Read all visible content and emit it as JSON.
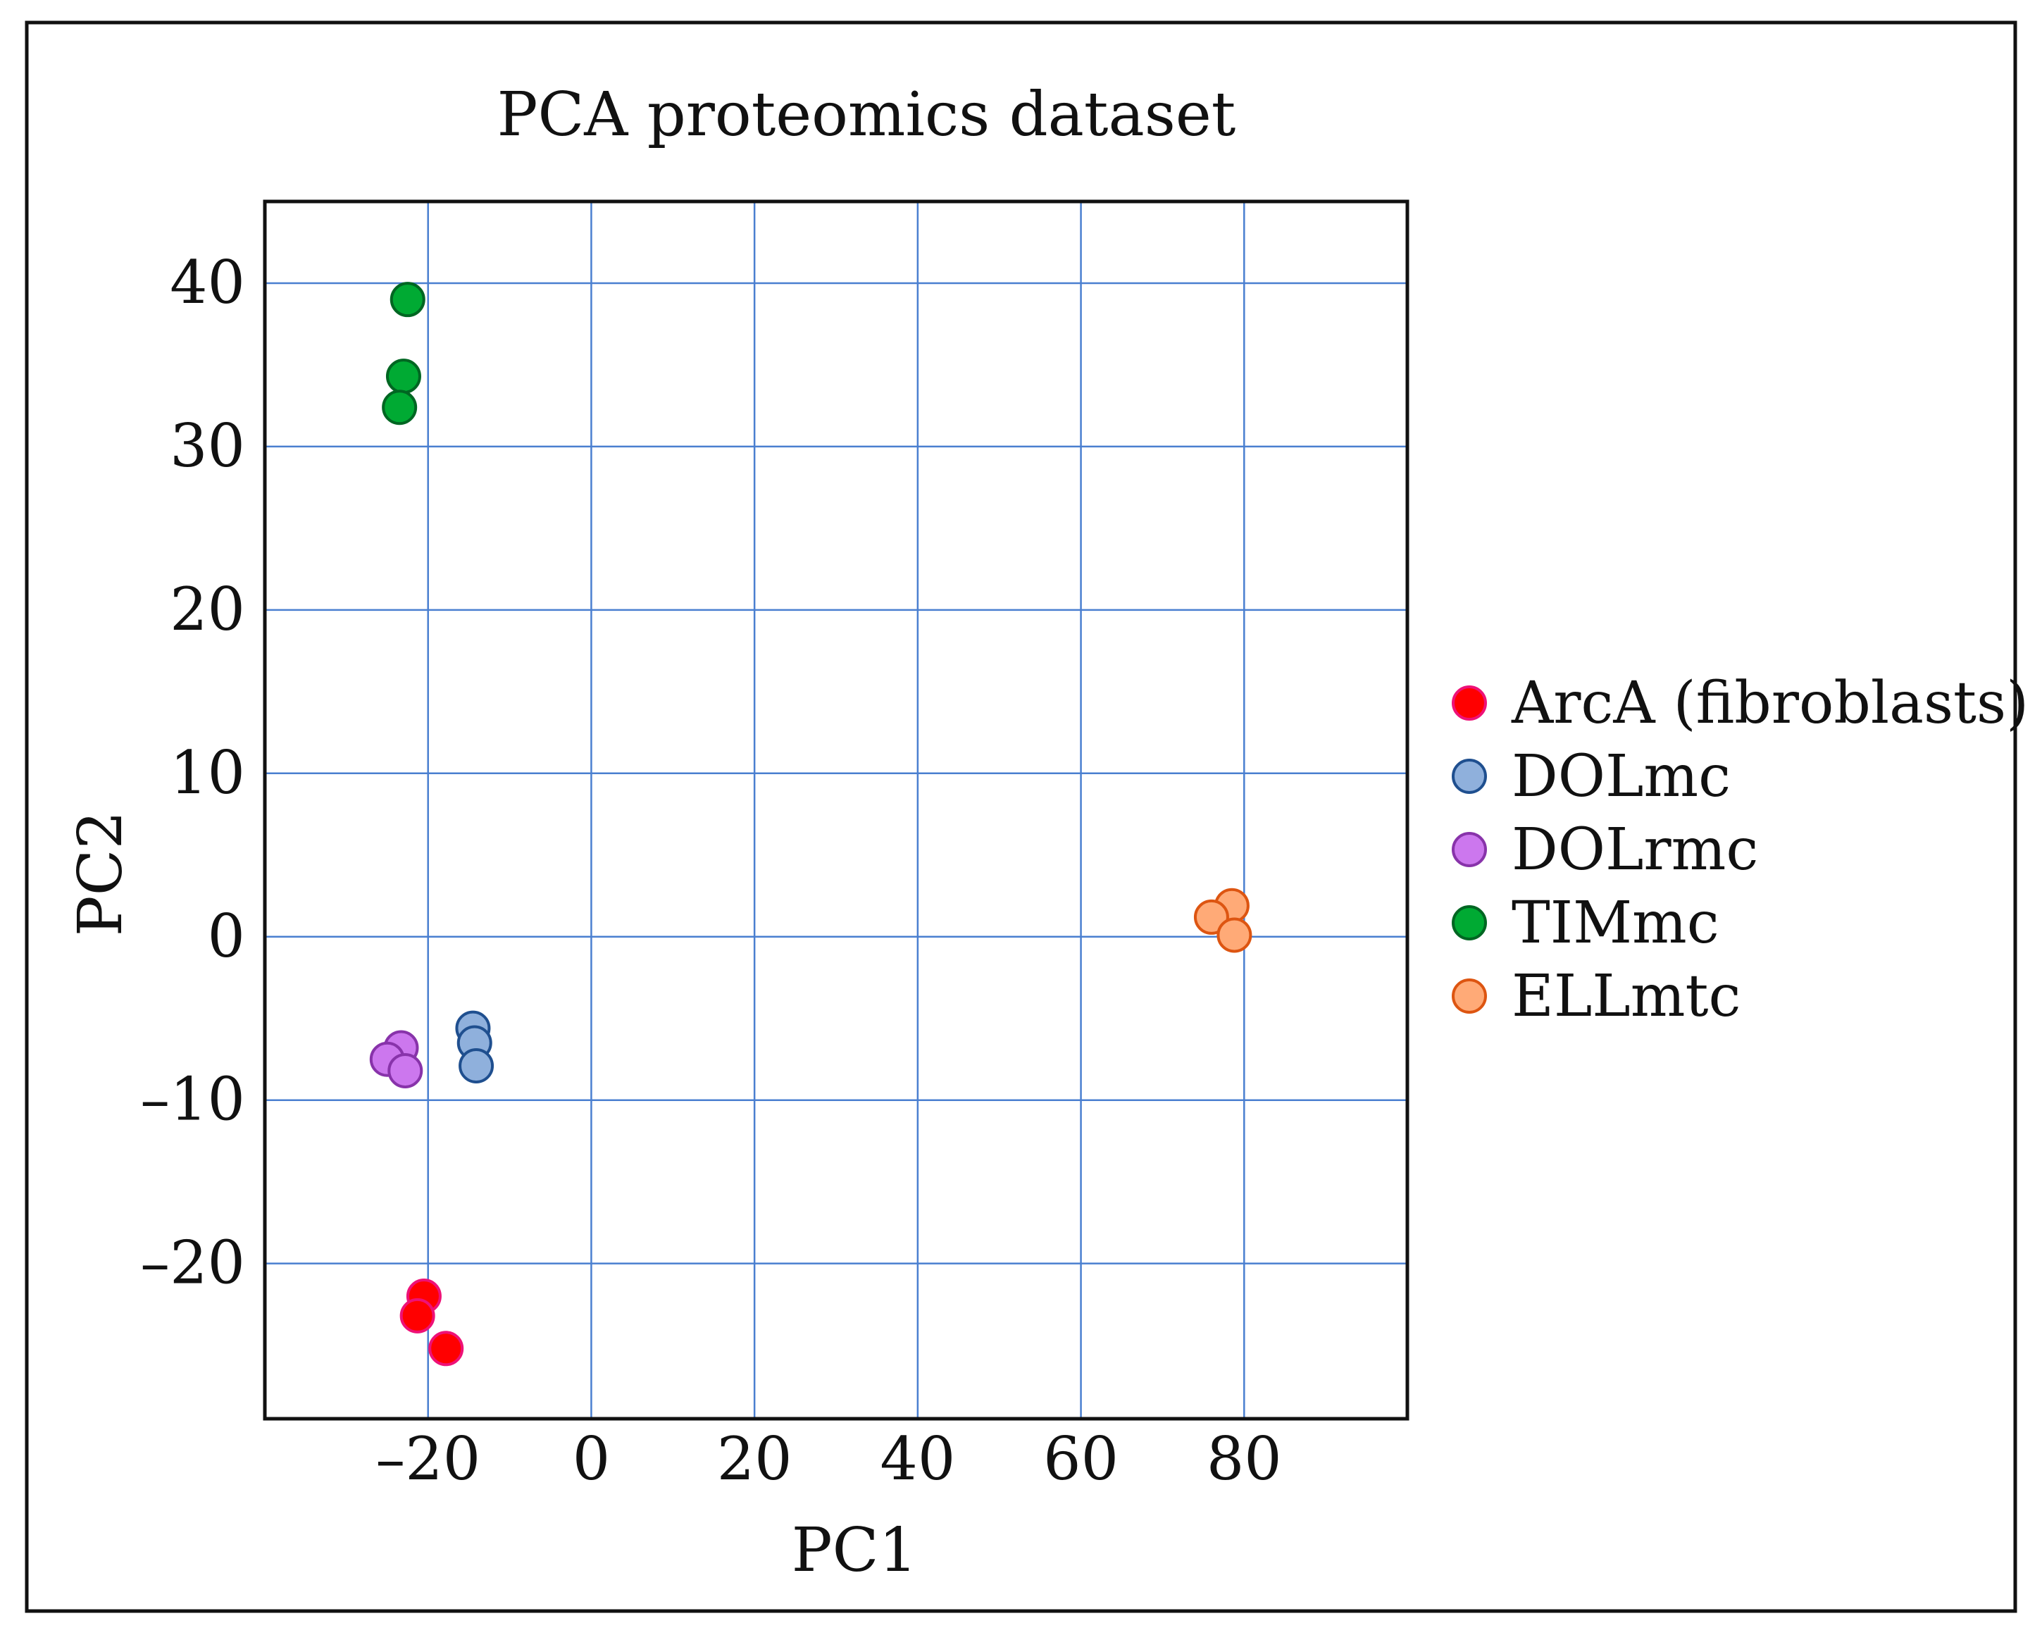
{
  "chart_data": {
    "type": "scatter",
    "title": "PCA proteomics dataset",
    "xlabel": "PC1",
    "ylabel": "PC2",
    "xlim": [
      -40,
      100
    ],
    "ylim": [
      -29.5,
      45
    ],
    "xticks": [
      -20,
      0,
      20,
      40,
      60,
      80
    ],
    "xtick_labels": [
      "–20",
      "0",
      "20",
      "40",
      "60",
      "80"
    ],
    "yticks": [
      -20,
      -10,
      0,
      10,
      20,
      30,
      40
    ],
    "ytick_labels": [
      "–20",
      "–10",
      "0",
      "10",
      "20",
      "30",
      "40"
    ],
    "grid": true,
    "legend_position": "right",
    "series": [
      {
        "name": "ArcA (fibroblasts)",
        "fill": "#ff0000",
        "stroke": "#ee1177",
        "points": [
          [
            -20.5,
            -22.0
          ],
          [
            -21.3,
            -23.2
          ],
          [
            -17.8,
            -25.2
          ]
        ]
      },
      {
        "name": "DOLmc",
        "fill": "#8fb0dc",
        "stroke": "#1f4f8f",
        "points": [
          [
            -14.5,
            -5.6
          ],
          [
            -14.3,
            -6.5
          ],
          [
            -14.1,
            -7.9
          ]
        ]
      },
      {
        "name": "DOLrmc",
        "fill": "#cc77ee",
        "stroke": "#8833aa",
        "points": [
          [
            -23.3,
            -6.8
          ],
          [
            -25.0,
            -7.5
          ],
          [
            -22.8,
            -8.2
          ]
        ]
      },
      {
        "name": "TIMmc",
        "fill": "#00aa33",
        "stroke": "#006622",
        "points": [
          [
            -22.5,
            39.0
          ],
          [
            -23.0,
            34.3
          ],
          [
            -23.5,
            32.4
          ]
        ]
      },
      {
        "name": "ELLmtc",
        "fill": "#ffaa77",
        "stroke": "#dd5511",
        "points": [
          [
            78.5,
            1.9
          ],
          [
            76.0,
            1.2
          ],
          [
            78.8,
            0.1
          ]
        ]
      }
    ]
  }
}
